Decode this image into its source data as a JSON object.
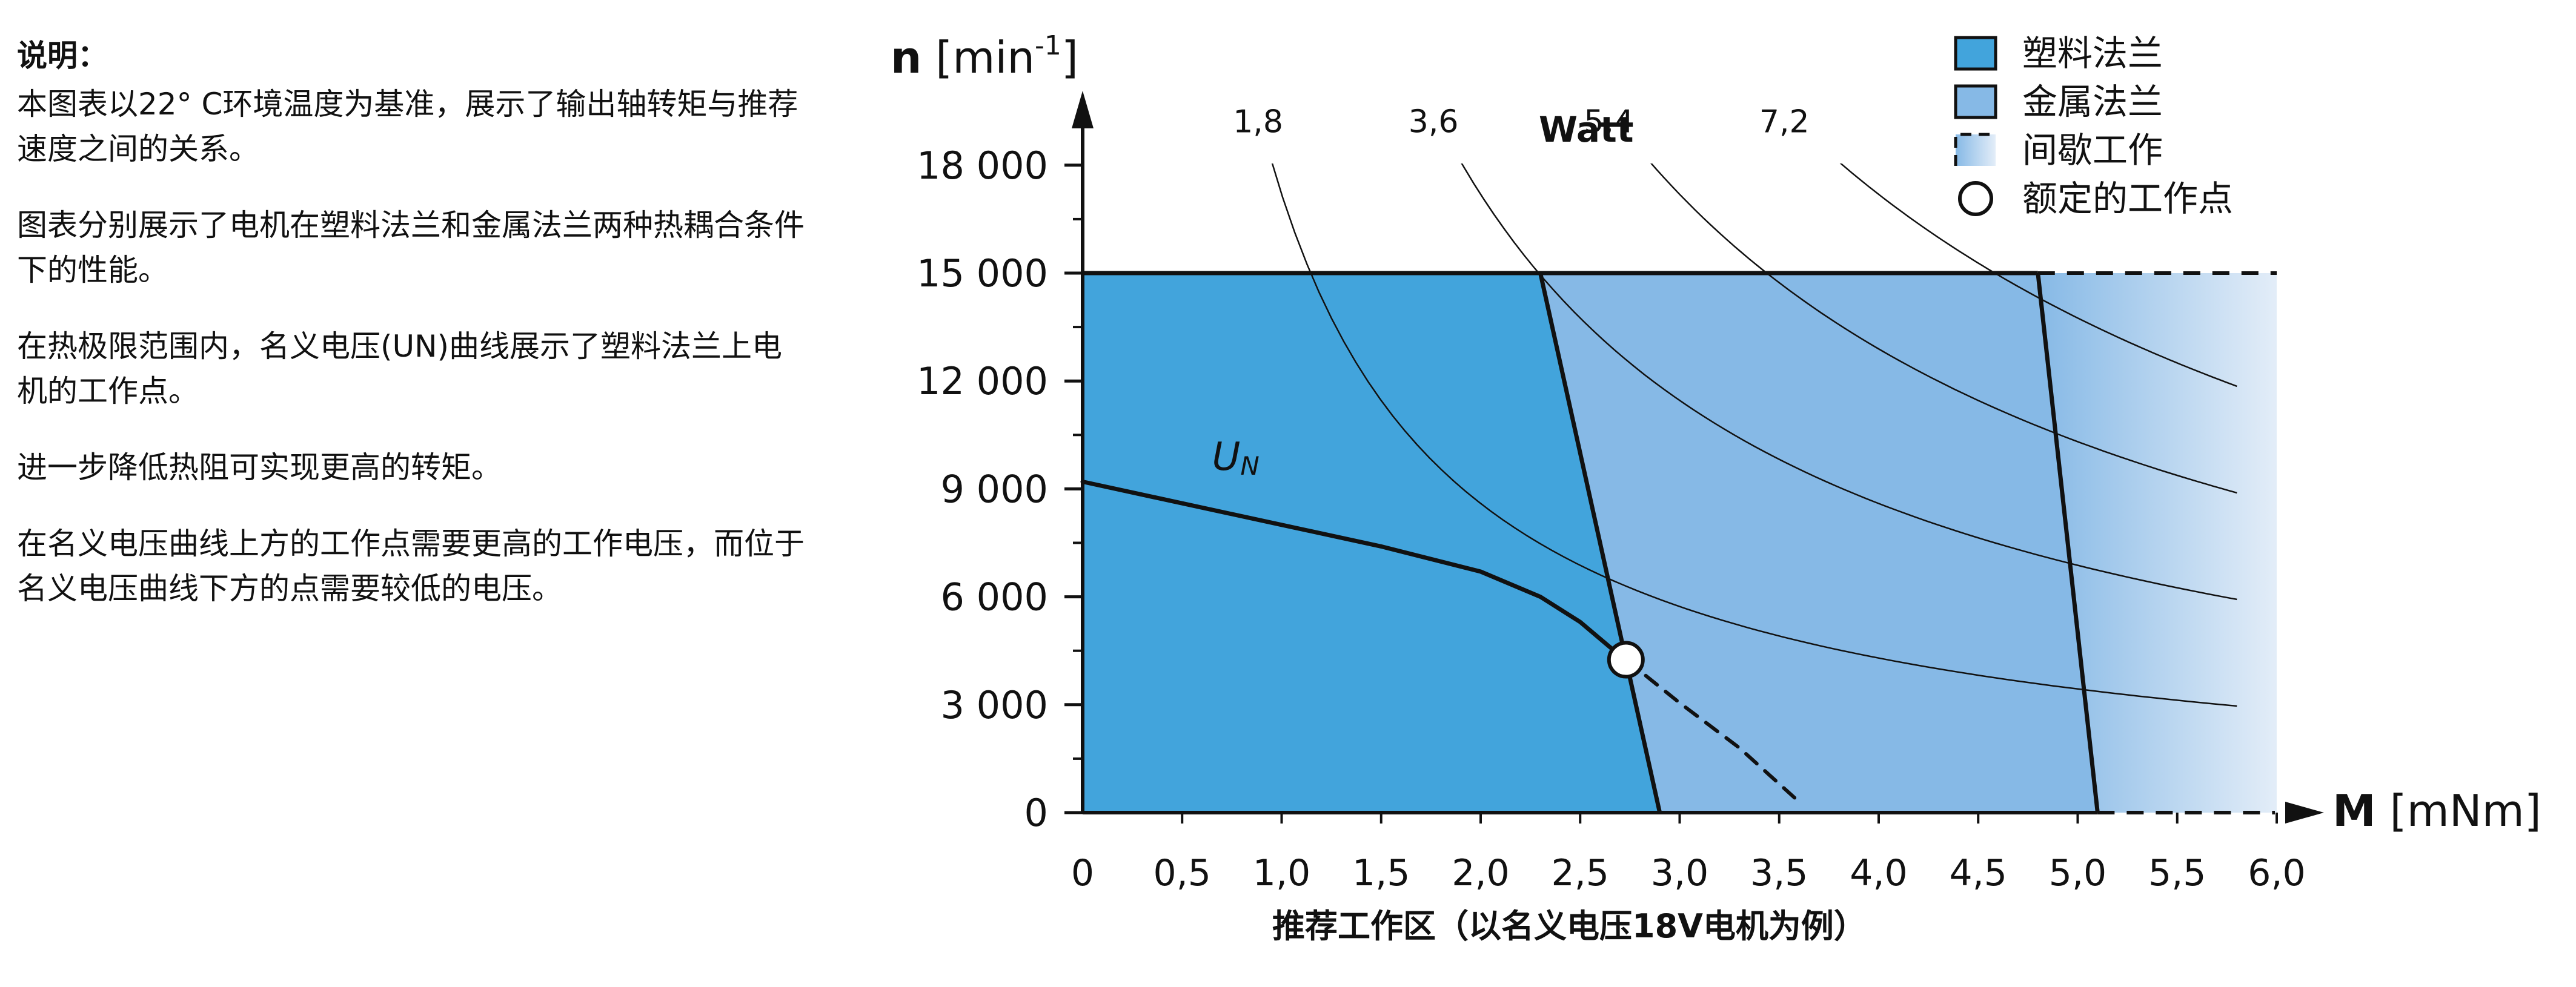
{
  "note": {
    "title": "说明：",
    "paragraphs": [
      "本图表以22° C环境温度为基准，展示了输出轴转矩与推荐速度之间的关系。",
      "图表分别展示了电机在塑料法兰和金属法兰两种热耦合条件下的性能。",
      "在热极限范围内，名义电压(UN)曲线展示了塑料法兰上电机的工作点。",
      "进一步降低热阻可实现更高的转矩。",
      "在名义电压曲线上方的工作点需要更高的工作电压，而位于名义电压曲线下方的点需要较低的电压。"
    ]
  },
  "chart_data": {
    "type": "area",
    "title": "",
    "xlabel": "M [mNm]",
    "ylabel": "n [min-1]",
    "x_caption": "推荐工作区（以名义电压18V电机为例）",
    "xlim": [
      0,
      6.0
    ],
    "ylim": [
      0,
      18000
    ],
    "x_ticks": [
      0,
      0.5,
      1.0,
      1.5,
      2.0,
      2.5,
      3.0,
      3.5,
      4.0,
      4.5,
      5.0,
      5.5,
      6.0
    ],
    "x_tick_labels": [
      "0",
      "0,5",
      "1,0",
      "1,5",
      "2,0",
      "2,5",
      "3,0",
      "3,5",
      "4,0",
      "4,5",
      "5,0",
      "5,5",
      "6,0"
    ],
    "y_ticks": [
      0,
      3000,
      6000,
      9000,
      12000,
      15000,
      18000
    ],
    "y_tick_labels": [
      "0",
      "3 000",
      "6 000",
      "9 000",
      "12 000",
      "15 000",
      "18 000"
    ],
    "speed_limit": 15000,
    "regions": [
      {
        "name": "塑料法兰",
        "color": "#42a4dc",
        "boundary": [
          [
            0,
            15000
          ],
          [
            2.3,
            15000
          ],
          [
            2.9,
            0
          ],
          [
            0,
            0
          ]
        ]
      },
      {
        "name": "金属法兰",
        "color": "#86b9e6",
        "boundary": [
          [
            2.3,
            15000
          ],
          [
            4.8,
            15000
          ],
          [
            5.1,
            0
          ],
          [
            2.9,
            0
          ]
        ]
      },
      {
        "name": "间歇工作",
        "color_from": "#86b9e6",
        "color_to": "#e3edf8",
        "boundary": [
          [
            4.8,
            15000
          ],
          [
            6.0,
            15000
          ],
          [
            6.0,
            0
          ],
          [
            5.1,
            0
          ]
        ]
      }
    ],
    "series": [
      {
        "name": "UN",
        "style": "solid",
        "points": [
          [
            0,
            9200
          ],
          [
            0.5,
            8600
          ],
          [
            1.0,
            8000
          ],
          [
            1.5,
            7400
          ],
          [
            2.0,
            6700
          ],
          [
            2.3,
            6000
          ],
          [
            2.5,
            5300
          ],
          [
            2.65,
            4600
          ],
          [
            2.73,
            4250
          ]
        ]
      },
      {
        "name": "UN",
        "style": "dashed",
        "points": [
          [
            2.73,
            4250
          ],
          [
            3.0,
            3050
          ],
          [
            3.3,
            1800
          ],
          [
            3.6,
            300
          ]
        ]
      }
    ],
    "power_label": "Watt",
    "power_curves": [
      {
        "label": "1,8",
        "watts": 1.8
      },
      {
        "label": "3,6",
        "watts": 3.6
      },
      {
        "label": "5,4",
        "watts": 5.4
      },
      {
        "label": "7,2",
        "watts": 7.2
      }
    ],
    "operating_point": {
      "x": 2.73,
      "y": 4250,
      "label": "额定的工作点"
    },
    "legend": {
      "placement": "top-right",
      "items": [
        {
          "label": "塑料法兰",
          "kind": "plastic"
        },
        {
          "label": "金属法兰",
          "kind": "metal"
        },
        {
          "label": "间歇工作",
          "kind": "intermittent"
        },
        {
          "label": "额定的工作点",
          "kind": "point"
        }
      ]
    }
  }
}
